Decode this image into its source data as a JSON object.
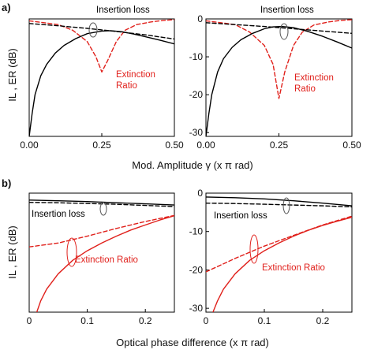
{
  "figure": {
    "panel_a_letter": "a)",
    "panel_b_letter": "b)",
    "ylabel": "IL , ER (dB)",
    "xlabel_a": "Mod. Amplitude γ (x π rad)",
    "xlabel_b": "Optical phase difference (x π rad)"
  },
  "colors": {
    "insertion_loss": "#000000",
    "extinction_ratio": "#e0201b",
    "ellipse": "#555555"
  },
  "chart_data": [
    {
      "id": "a-left",
      "type": "line",
      "xlim": [
        0,
        0.5
      ],
      "ylim": [
        -31,
        0
      ],
      "xticks": [
        0,
        0.25,
        0.5
      ],
      "xtick_labels": [
        "0.00",
        "0.25",
        "0.50"
      ],
      "yticks": [],
      "ytick_labels": [],
      "grid": false,
      "annotations": [
        {
          "id": "il",
          "text": "Insertion loss",
          "color": "#000000"
        },
        {
          "id": "er",
          "text": "Extinction\nRatio",
          "color": "#e0201b"
        }
      ],
      "series": [
        {
          "id": "er-dashed",
          "style": "dashed",
          "color": "#e0201b",
          "x": [
            0.0,
            0.1,
            0.15,
            0.2,
            0.23,
            0.25,
            0.27,
            0.3,
            0.33,
            0.37,
            0.42,
            0.46,
            0.5
          ],
          "y": [
            -0.5,
            -1.5,
            -3,
            -6,
            -10,
            -14,
            -11,
            -6,
            -3,
            -1.5,
            -0.8,
            -0.4,
            -0.2
          ]
        },
        {
          "id": "il-dashed",
          "style": "dashed",
          "color": "#000000",
          "x": [
            0.0,
            0.1,
            0.2,
            0.3,
            0.4,
            0.5
          ],
          "y": [
            -1.2,
            -1.8,
            -2.5,
            -3.3,
            -4.2,
            -5.3
          ]
        },
        {
          "id": "il-solid",
          "style": "solid",
          "color": "#000000",
          "x": [
            0.0,
            0.01,
            0.02,
            0.04,
            0.06,
            0.09,
            0.12,
            0.16,
            0.2,
            0.25,
            0.28,
            0.32,
            0.36,
            0.4,
            0.45,
            0.5
          ],
          "y": [
            -31,
            -25,
            -20,
            -15,
            -12,
            -9,
            -7,
            -5.2,
            -3.9,
            -3.2,
            -3.1,
            -3.4,
            -4,
            -4.7,
            -5.6,
            -6.6
          ]
        }
      ]
    },
    {
      "id": "a-right",
      "type": "line",
      "xlim": [
        0,
        0.5
      ],
      "ylim": [
        -31,
        0
      ],
      "xticks": [
        0,
        0.25,
        0.5
      ],
      "xtick_labels": [
        "0.00",
        "0.25",
        "0.50"
      ],
      "yticks": [
        0,
        -10,
        -20,
        -30
      ],
      "ytick_labels": [
        "0",
        "-10",
        "-20",
        "-30"
      ],
      "grid": false,
      "annotations": [
        {
          "id": "il",
          "text": "Insertion loss",
          "color": "#000000"
        },
        {
          "id": "er",
          "text": "Extinction\nRatio",
          "color": "#e0201b"
        }
      ],
      "series": [
        {
          "id": "er-dashed",
          "style": "dashed",
          "color": "#e0201b",
          "x": [
            0.0,
            0.1,
            0.15,
            0.2,
            0.23,
            0.25,
            0.27,
            0.3,
            0.33,
            0.37,
            0.42,
            0.46,
            0.5
          ],
          "y": [
            -0.5,
            -1.5,
            -3.5,
            -7,
            -12,
            -21,
            -14,
            -7,
            -3.5,
            -1.6,
            -0.8,
            -0.4,
            -0.2
          ]
        },
        {
          "id": "il-dashed",
          "style": "dashed",
          "color": "#000000",
          "x": [
            0.0,
            0.1,
            0.2,
            0.3,
            0.4,
            0.5
          ],
          "y": [
            -1.0,
            -1.5,
            -2.0,
            -2.6,
            -3.2,
            -3.8
          ]
        },
        {
          "id": "il-solid",
          "style": "solid",
          "color": "#000000",
          "x": [
            0.0,
            0.01,
            0.02,
            0.04,
            0.06,
            0.09,
            0.12,
            0.16,
            0.2,
            0.23,
            0.26,
            0.3,
            0.35,
            0.4,
            0.45,
            0.5
          ],
          "y": [
            -31,
            -25,
            -20,
            -14,
            -10.5,
            -7.5,
            -5.5,
            -3.8,
            -2.6,
            -2.1,
            -2.0,
            -2.3,
            -3.3,
            -4.6,
            -6.1,
            -7.7
          ]
        }
      ]
    },
    {
      "id": "b-left",
      "type": "line",
      "xlim": [
        0,
        0.25
      ],
      "ylim": [
        -31,
        0
      ],
      "xticks": [
        0,
        0.1,
        0.2
      ],
      "xtick_labels": [
        "0",
        "0.1",
        "0.2"
      ],
      "yticks": [],
      "ytick_labels": [],
      "grid": false,
      "annotations": [
        {
          "id": "il",
          "text": "Insertion loss",
          "color": "#000000"
        },
        {
          "id": "er",
          "text": "Extinction Ratio",
          "color": "#e0201b"
        }
      ],
      "series": [
        {
          "id": "il-solid",
          "style": "solid",
          "color": "#000000",
          "x": [
            0.0,
            0.05,
            0.1,
            0.15,
            0.2,
            0.25
          ],
          "y": [
            -1.8,
            -2.0,
            -2.2,
            -2.5,
            -2.8,
            -3.1
          ]
        },
        {
          "id": "il-dashed",
          "style": "dashed",
          "color": "#000000",
          "x": [
            0.0,
            0.05,
            0.1,
            0.15,
            0.2,
            0.25
          ],
          "y": [
            -2.4,
            -2.5,
            -2.7,
            -2.9,
            -3.2,
            -3.5
          ]
        },
        {
          "id": "er-dashed",
          "style": "dashed",
          "color": "#e0201b",
          "x": [
            0.0,
            0.05,
            0.1,
            0.15,
            0.2,
            0.25
          ],
          "y": [
            -14,
            -13,
            -11.2,
            -9.2,
            -7.4,
            -5.8
          ]
        },
        {
          "id": "er-solid",
          "style": "solid",
          "color": "#e0201b",
          "x": [
            0.013,
            0.02,
            0.03,
            0.05,
            0.075,
            0.1,
            0.125,
            0.15,
            0.175,
            0.2,
            0.225,
            0.25
          ],
          "y": [
            -31,
            -28,
            -25,
            -21,
            -17.5,
            -15,
            -13,
            -11.2,
            -9.6,
            -8.3,
            -7,
            -5.9
          ]
        }
      ]
    },
    {
      "id": "b-right",
      "type": "line",
      "xlim": [
        0,
        0.25
      ],
      "ylim": [
        -31,
        0
      ],
      "xticks": [
        0,
        0.1,
        0.2
      ],
      "xtick_labels": [
        "0",
        "0.1",
        "0.2"
      ],
      "yticks": [
        0,
        -10,
        -20,
        -30
      ],
      "ytick_labels": [
        "0",
        "-10",
        "-20",
        "-30"
      ],
      "grid": false,
      "annotations": [
        {
          "id": "il",
          "text": "Insertion loss",
          "color": "#000000"
        },
        {
          "id": "er",
          "text": "Extinction Ratio",
          "color": "#e0201b"
        }
      ],
      "series": [
        {
          "id": "il-solid",
          "style": "solid",
          "color": "#000000",
          "x": [
            0.0,
            0.05,
            0.1,
            0.15,
            0.2,
            0.25
          ],
          "y": [
            -1.0,
            -1.2,
            -1.5,
            -2.0,
            -2.6,
            -3.3
          ]
        },
        {
          "id": "il-dashed",
          "style": "dashed",
          "color": "#000000",
          "x": [
            0.0,
            0.05,
            0.1,
            0.15,
            0.2,
            0.25
          ],
          "y": [
            -2.6,
            -2.7,
            -2.9,
            -3.1,
            -3.3,
            -3.6
          ]
        },
        {
          "id": "er-dashed",
          "style": "dashed",
          "color": "#e0201b",
          "x": [
            0.0,
            0.05,
            0.1,
            0.15,
            0.2,
            0.25
          ],
          "y": [
            -20.5,
            -17,
            -13.8,
            -11,
            -8.3,
            -6
          ]
        },
        {
          "id": "er-solid",
          "style": "solid",
          "color": "#e0201b",
          "x": [
            0.012,
            0.02,
            0.03,
            0.05,
            0.075,
            0.1,
            0.125,
            0.15,
            0.175,
            0.2,
            0.225,
            0.25
          ],
          "y": [
            -31,
            -28,
            -25,
            -21,
            -17.5,
            -15,
            -13,
            -11.2,
            -9.7,
            -8.4,
            -7.3,
            -6.3
          ]
        }
      ]
    }
  ]
}
